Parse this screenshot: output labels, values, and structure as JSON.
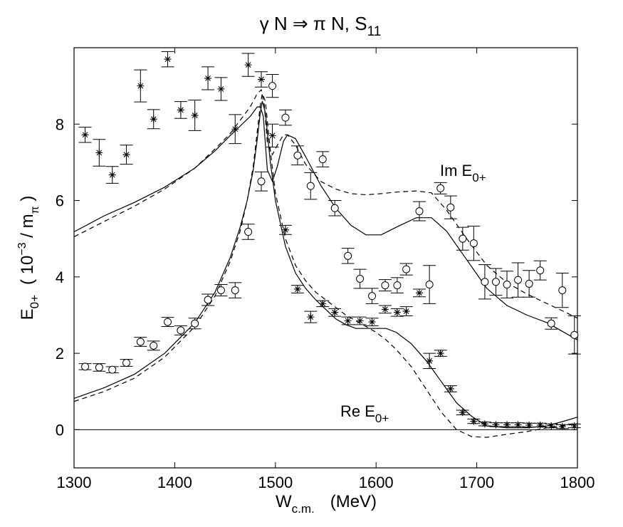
{
  "chart_data": {
    "type": "scatter",
    "title": {
      "main": "γ  N ⇒ π  N, S",
      "sub": "11"
    },
    "xlabel": {
      "main": "W",
      "sub": "c.m.",
      "unit": "(MeV)"
    },
    "ylabel": {
      "main": "E",
      "sub": "0+",
      "unit_open": "( 10",
      "unit_exp": "−3",
      "unit_mid": " / m",
      "unit_sub": "π",
      "unit_close": " )"
    },
    "xlim": [
      1300,
      1800
    ],
    "ylim": [
      -1,
      10
    ],
    "xticks": [
      "1300",
      "1400",
      "1500",
      "1600",
      "1700",
      "1800"
    ],
    "yticks": [
      "0",
      "2",
      "4",
      "6",
      "8"
    ],
    "grid": false,
    "annotations": {
      "im": {
        "main": "Im E",
        "sub": "0+"
      },
      "re": {
        "main": "Re E",
        "sub": "0+"
      }
    },
    "series": [
      {
        "marker": "circle",
        "points": [
          [
            1311,
            1.65,
            0.08
          ],
          [
            1325,
            1.63,
            0.1
          ],
          [
            1338,
            1.57,
            0.08
          ],
          [
            1352,
            1.75,
            0.09
          ],
          [
            1366,
            2.3,
            0.12
          ],
          [
            1379,
            2.2,
            0.12
          ],
          [
            1393,
            2.82,
            0.12
          ],
          [
            1406,
            2.6,
            0.12
          ],
          [
            1420,
            2.78,
            0.14
          ],
          [
            1433,
            3.4,
            0.15
          ],
          [
            1446,
            3.65,
            0.15
          ],
          [
            1460,
            3.65,
            0.2
          ],
          [
            1473,
            5.18,
            0.2
          ],
          [
            1486,
            6.5,
            0.25
          ],
          [
            1497,
            9.0,
            0.3
          ],
          [
            1510,
            8.17,
            0.2
          ],
          [
            1522,
            7.18,
            0.25
          ],
          [
            1535,
            6.38,
            0.35
          ],
          [
            1547,
            7.08,
            0.2
          ],
          [
            1559,
            5.8,
            0.2
          ],
          [
            1572,
            4.55,
            0.2
          ],
          [
            1584,
            3.95,
            0.25
          ],
          [
            1596,
            3.5,
            0.2
          ],
          [
            1609,
            3.78,
            0.15
          ],
          [
            1621,
            3.78,
            0.2
          ],
          [
            1630,
            4.2,
            0.15
          ],
          [
            1653,
            3.8,
            0.5
          ],
          [
            1643,
            5.72,
            0.25
          ],
          [
            1664,
            6.32,
            0.15
          ],
          [
            1674,
            5.82,
            0.3
          ],
          [
            1686,
            5.0,
            0.3
          ],
          [
            1697,
            4.88,
            0.45
          ],
          [
            1708,
            3.87,
            0.45
          ],
          [
            1719,
            3.87,
            0.35
          ],
          [
            1730,
            3.8,
            0.35
          ],
          [
            1741,
            3.92,
            0.45
          ],
          [
            1752,
            3.82,
            0.35
          ],
          [
            1763,
            4.17,
            0.25
          ],
          [
            1774,
            2.78,
            0.15
          ],
          [
            1785,
            3.65,
            0.45
          ],
          [
            1797,
            2.48,
            0.5
          ]
        ]
      },
      {
        "marker": "star",
        "points": [
          [
            1311,
            7.72,
            0.2
          ],
          [
            1325,
            7.25,
            0.35
          ],
          [
            1338,
            6.67,
            0.22
          ],
          [
            1352,
            7.2,
            0.25
          ],
          [
            1366,
            9.0,
            0.42
          ],
          [
            1379,
            8.13,
            0.25
          ],
          [
            1393,
            9.7,
            0.2
          ],
          [
            1406,
            8.37,
            0.22
          ],
          [
            1420,
            8.23,
            0.4
          ],
          [
            1433,
            9.2,
            0.3
          ],
          [
            1446,
            8.92,
            0.3
          ],
          [
            1460,
            7.87,
            0.38
          ],
          [
            1473,
            9.55,
            0.3
          ],
          [
            1486,
            9.17,
            0.2
          ],
          [
            1497,
            7.7,
            0.3
          ],
          [
            1510,
            5.23,
            0.12
          ],
          [
            1522,
            3.68,
            0.1
          ],
          [
            1535,
            2.95,
            0.15
          ],
          [
            1547,
            3.3,
            0.08
          ],
          [
            1559,
            3.07,
            0.1
          ],
          [
            1572,
            2.85,
            0.1
          ],
          [
            1584,
            2.85,
            0.1
          ],
          [
            1596,
            2.82,
            0.1
          ],
          [
            1609,
            3.15,
            0.1
          ],
          [
            1621,
            3.07,
            0.1
          ],
          [
            1630,
            3.1,
            0.12
          ],
          [
            1643,
            3.58,
            0.1
          ],
          [
            1653,
            1.8,
            0.2
          ],
          [
            1664,
            2.0,
            0.08
          ],
          [
            1674,
            1.07,
            0.08
          ],
          [
            1686,
            0.45,
            0.06
          ],
          [
            1697,
            0.22,
            0.06
          ],
          [
            1708,
            0.15,
            0.05
          ],
          [
            1719,
            0.13,
            0.05
          ],
          [
            1730,
            0.13,
            0.05
          ],
          [
            1741,
            0.13,
            0.05
          ],
          [
            1752,
            0.12,
            0.05
          ],
          [
            1763,
            0.12,
            0.05
          ],
          [
            1774,
            0.1,
            0.05
          ],
          [
            1785,
            0.08,
            0.05
          ],
          [
            1797,
            0.1,
            0.05
          ]
        ]
      },
      {
        "style": "solid",
        "points": [
          [
            1300,
            0.82
          ],
          [
            1330,
            1.1
          ],
          [
            1360,
            1.45
          ],
          [
            1390,
            2.0
          ],
          [
            1420,
            2.8
          ],
          [
            1440,
            3.6
          ],
          [
            1455,
            4.5
          ],
          [
            1465,
            5.3
          ],
          [
            1472,
            6.0
          ],
          [
            1478,
            6.8
          ],
          [
            1482,
            7.6
          ],
          [
            1485,
            8.3
          ],
          [
            1487,
            8.6
          ],
          [
            1490,
            8.3
          ],
          [
            1495,
            7.0
          ],
          [
            1500,
            6.0
          ],
          [
            1510,
            4.8
          ],
          [
            1520,
            4.1
          ],
          [
            1530,
            3.7
          ],
          [
            1540,
            3.4
          ],
          [
            1550,
            3.15
          ],
          [
            1560,
            2.9
          ],
          [
            1570,
            2.75
          ],
          [
            1580,
            2.65
          ],
          [
            1590,
            2.65
          ],
          [
            1600,
            2.65
          ],
          [
            1610,
            2.65
          ],
          [
            1620,
            2.55
          ],
          [
            1635,
            2.25
          ],
          [
            1650,
            1.8
          ],
          [
            1665,
            1.25
          ],
          [
            1680,
            0.7
          ],
          [
            1695,
            0.35
          ],
          [
            1710,
            0.1
          ],
          [
            1730,
            0.05
          ],
          [
            1750,
            0.05
          ],
          [
            1770,
            0.1
          ],
          [
            1790,
            0.25
          ],
          [
            1800,
            0.33
          ]
        ]
      },
      {
        "style": "dashed",
        "points": [
          [
            1300,
            0.74
          ],
          [
            1330,
            1.0
          ],
          [
            1360,
            1.35
          ],
          [
            1390,
            1.9
          ],
          [
            1420,
            2.7
          ],
          [
            1440,
            3.5
          ],
          [
            1455,
            4.4
          ],
          [
            1465,
            5.2
          ],
          [
            1472,
            6.0
          ],
          [
            1478,
            6.9
          ],
          [
            1482,
            7.8
          ],
          [
            1485,
            8.5
          ],
          [
            1487,
            8.8
          ],
          [
            1490,
            8.6
          ],
          [
            1495,
            7.3
          ],
          [
            1500,
            6.2
          ],
          [
            1510,
            5.0
          ],
          [
            1520,
            4.3
          ],
          [
            1530,
            3.9
          ],
          [
            1540,
            3.6
          ],
          [
            1550,
            3.4
          ],
          [
            1560,
            3.2
          ],
          [
            1570,
            3.0
          ],
          [
            1580,
            2.85
          ],
          [
            1590,
            2.7
          ],
          [
            1600,
            2.55
          ],
          [
            1610,
            2.35
          ],
          [
            1620,
            2.1
          ],
          [
            1635,
            1.65
          ],
          [
            1650,
            1.05
          ],
          [
            1665,
            0.45
          ],
          [
            1680,
            0.0
          ],
          [
            1695,
            -0.18
          ],
          [
            1710,
            -0.2
          ],
          [
            1730,
            -0.12
          ],
          [
            1750,
            -0.05
          ],
          [
            1770,
            0.05
          ],
          [
            1790,
            0.12
          ],
          [
            1800,
            0.15
          ]
        ]
      },
      {
        "style": "solid",
        "points": [
          [
            1300,
            5.18
          ],
          [
            1330,
            5.6
          ],
          [
            1360,
            5.95
          ],
          [
            1390,
            6.35
          ],
          [
            1420,
            6.85
          ],
          [
            1440,
            7.3
          ],
          [
            1455,
            7.7
          ],
          [
            1465,
            7.95
          ],
          [
            1475,
            8.2
          ],
          [
            1482,
            8.45
          ],
          [
            1485,
            8.45
          ],
          [
            1488,
            8.2
          ],
          [
            1492,
            6.8
          ],
          [
            1497,
            6.5
          ],
          [
            1502,
            6.9
          ],
          [
            1508,
            7.55
          ],
          [
            1512,
            7.72
          ],
          [
            1520,
            7.62
          ],
          [
            1530,
            7.15
          ],
          [
            1545,
            6.4
          ],
          [
            1560,
            5.8
          ],
          [
            1575,
            5.35
          ],
          [
            1590,
            5.1
          ],
          [
            1605,
            5.1
          ],
          [
            1620,
            5.3
          ],
          [
            1640,
            5.55
          ],
          [
            1655,
            5.55
          ],
          [
            1670,
            5.2
          ],
          [
            1690,
            4.45
          ],
          [
            1710,
            3.7
          ],
          [
            1730,
            3.25
          ],
          [
            1750,
            3.0
          ],
          [
            1770,
            2.8
          ],
          [
            1790,
            2.5
          ],
          [
            1800,
            2.35
          ]
        ]
      },
      {
        "style": "dashed",
        "points": [
          [
            1300,
            5.05
          ],
          [
            1330,
            5.45
          ],
          [
            1360,
            5.85
          ],
          [
            1390,
            6.3
          ],
          [
            1420,
            6.85
          ],
          [
            1440,
            7.35
          ],
          [
            1455,
            7.75
          ],
          [
            1465,
            8.1
          ],
          [
            1475,
            8.45
          ],
          [
            1482,
            8.8
          ],
          [
            1486,
            8.9
          ],
          [
            1489,
            8.5
          ],
          [
            1492,
            7.5
          ],
          [
            1497,
            7.2
          ],
          [
            1502,
            7.45
          ],
          [
            1508,
            7.72
          ],
          [
            1512,
            7.72
          ],
          [
            1520,
            7.45
          ],
          [
            1530,
            6.95
          ],
          [
            1545,
            6.5
          ],
          [
            1560,
            6.3
          ],
          [
            1575,
            6.18
          ],
          [
            1590,
            6.15
          ],
          [
            1605,
            6.18
          ],
          [
            1620,
            6.22
          ],
          [
            1640,
            6.25
          ],
          [
            1655,
            6.2
          ],
          [
            1670,
            5.75
          ],
          [
            1690,
            5.0
          ],
          [
            1710,
            4.3
          ],
          [
            1730,
            3.85
          ],
          [
            1750,
            3.55
          ],
          [
            1770,
            3.3
          ],
          [
            1790,
            3.05
          ],
          [
            1800,
            2.92
          ]
        ]
      }
    ]
  }
}
